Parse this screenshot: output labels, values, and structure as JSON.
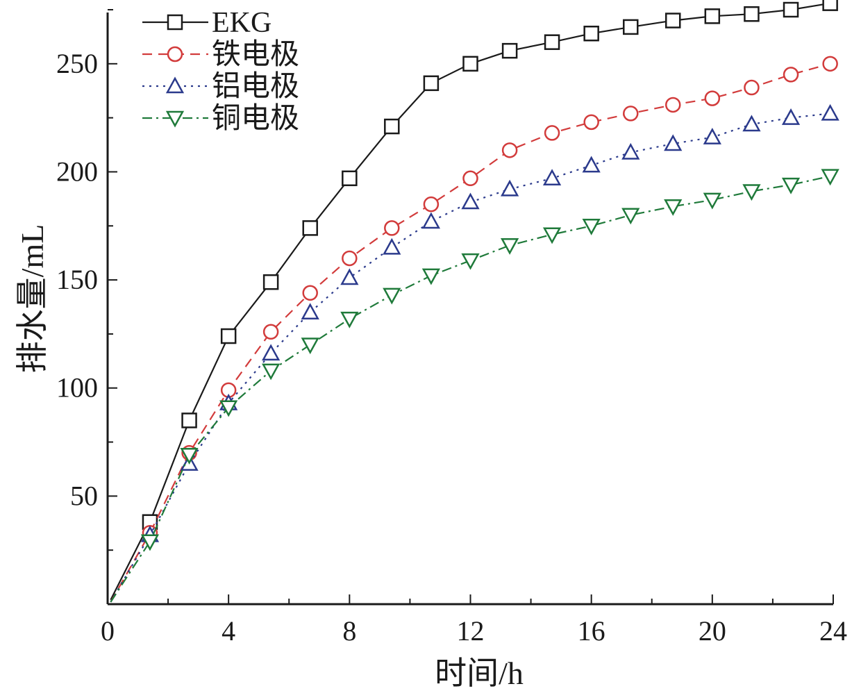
{
  "chart_data": {
    "type": "line",
    "title": "",
    "xlabel": "时间/h",
    "ylabel": "排水量/mL",
    "xlim": [
      0,
      24
    ],
    "ylim": [
      0,
      275
    ],
    "xticks": [
      0,
      4,
      8,
      12,
      16,
      20,
      24
    ],
    "yticks": [
      50,
      100,
      150,
      200,
      250
    ],
    "grid": false,
    "legend_position": "top-left",
    "x": [
      0.1,
      1.4,
      2.7,
      4.0,
      5.4,
      6.7,
      8.0,
      9.4,
      10.7,
      12.0,
      13.3,
      14.7,
      16.0,
      17.3,
      18.7,
      20.0,
      21.3,
      22.6,
      23.9
    ],
    "series": [
      {
        "name": "EKG",
        "marker": "square",
        "dash": "solid",
        "color": "#1a1a1a",
        "values": [
          2,
          38,
          85,
          124,
          149,
          174,
          197,
          221,
          241,
          250,
          256,
          260,
          264,
          267,
          270,
          272,
          273,
          275,
          278
        ]
      },
      {
        "name": "铁电极",
        "marker": "circle",
        "dash": "dashed",
        "color": "#d23b3b",
        "values": [
          1,
          33,
          70,
          99,
          126,
          144,
          160,
          174,
          185,
          197,
          210,
          218,
          223,
          227,
          231,
          234,
          239,
          245,
          250
        ]
      },
      {
        "name": "铝电极",
        "marker": "triangle-up",
        "dash": "dotted",
        "color": "#2b3a8c",
        "values": [
          1,
          32,
          65,
          93,
          116,
          135,
          151,
          165,
          177,
          186,
          192,
          197,
          203,
          209,
          213,
          216,
          222,
          225,
          227
        ]
      },
      {
        "name": "铜电极",
        "marker": "triangle-down",
        "dash": "dashdot",
        "color": "#1f7a3a",
        "values": [
          1,
          29,
          69,
          91,
          108,
          120,
          132,
          143,
          152,
          159,
          166,
          171,
          175,
          180,
          184,
          187,
          191,
          194,
          198
        ]
      }
    ]
  }
}
